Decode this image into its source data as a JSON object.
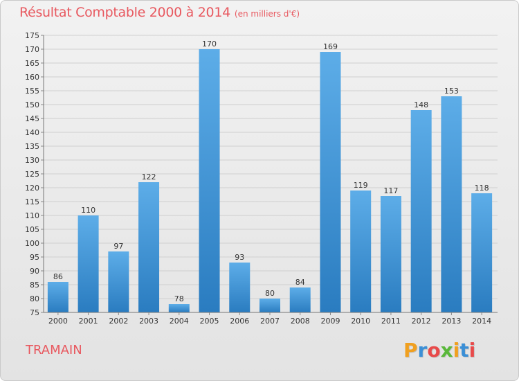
{
  "header": {
    "title": "Résultat Comptable 2000 à 2014",
    "subtitle": "(en milliers d'€)"
  },
  "footer": {
    "commune": "TRAMAIN",
    "brand_letters": [
      "P",
      "r",
      "o",
      "x",
      "i",
      "t",
      "i"
    ],
    "brand_colors": [
      "#f0a020",
      "#3b8fd6",
      "#e84a4a",
      "#59b83a",
      "#f0a020",
      "#3b8fd6",
      "#e84a4a"
    ]
  },
  "colors": {
    "bar_top": "#5dade8",
    "bar_bottom": "#2a7cc0",
    "title": "#e8585f"
  },
  "chart_data": {
    "type": "bar",
    "categories": [
      "2000",
      "2001",
      "2002",
      "2003",
      "2004",
      "2005",
      "2006",
      "2007",
      "2008",
      "2009",
      "2010",
      "2011",
      "2012",
      "2013",
      "2014"
    ],
    "values": [
      86,
      110,
      97,
      122,
      78,
      170,
      93,
      80,
      84,
      169,
      119,
      117,
      148,
      153,
      118
    ],
    "ylim": [
      75,
      175
    ],
    "ytick_step": 5,
    "grid": true,
    "xlabel": "",
    "ylabel": ""
  }
}
